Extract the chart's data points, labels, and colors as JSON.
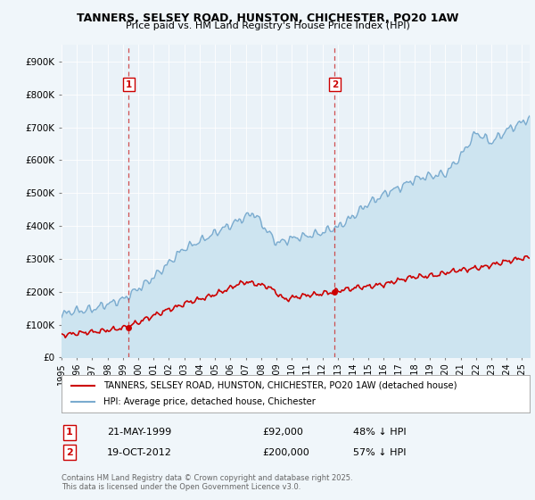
{
  "title_line1": "TANNERS, SELSEY ROAD, HUNSTON, CHICHESTER, PO20 1AW",
  "title_line2": "Price paid vs. HM Land Registry's House Price Index (HPI)",
  "background_color": "#f0f6fa",
  "plot_bg_color": "#eaf2f8",
  "ylim": [
    0,
    950000
  ],
  "yticks": [
    0,
    100000,
    200000,
    300000,
    400000,
    500000,
    600000,
    700000,
    800000,
    900000
  ],
  "ytick_labels": [
    "£0",
    "£100K",
    "£200K",
    "£300K",
    "£400K",
    "£500K",
    "£600K",
    "£700K",
    "£800K",
    "£900K"
  ],
  "hpi_color": "#7aabcf",
  "hpi_fill_color": "#cde4f0",
  "price_color": "#cc0000",
  "marker1_date_num": 1999.38,
  "marker1_price": 92000,
  "marker1_label": "1",
  "marker1_date_str": "21-MAY-1999",
  "marker1_price_str": "£92,000",
  "marker1_pct_str": "48% ↓ HPI",
  "marker2_date_num": 2012.8,
  "marker2_price": 200000,
  "marker2_label": "2",
  "marker2_date_str": "19-OCT-2012",
  "marker2_price_str": "£200,000",
  "marker2_pct_str": "57% ↓ HPI",
  "legend_property_label": "TANNERS, SELSEY ROAD, HUNSTON, CHICHESTER, PO20 1AW (detached house)",
  "legend_hpi_label": "HPI: Average price, detached house, Chichester",
  "footer_line1": "Contains HM Land Registry data © Crown copyright and database right 2025.",
  "footer_line2": "This data is licensed under the Open Government Licence v3.0.",
  "xmin": 1995.0,
  "xmax": 2025.5,
  "xtick_years": [
    1995,
    1996,
    1997,
    1998,
    1999,
    2000,
    2001,
    2002,
    2003,
    2004,
    2005,
    2006,
    2007,
    2008,
    2009,
    2010,
    2011,
    2012,
    2013,
    2014,
    2015,
    2016,
    2017,
    2018,
    2019,
    2020,
    2021,
    2022,
    2023,
    2024,
    2025
  ]
}
